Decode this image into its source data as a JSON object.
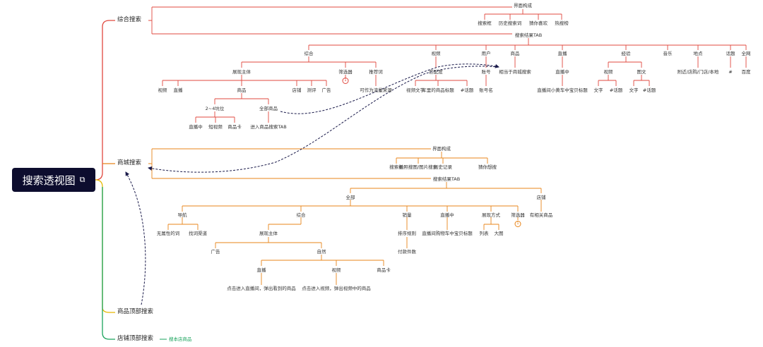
{
  "root": {
    "title": "搜索透视图",
    "icon": "copy-icon"
  },
  "branches": {
    "b1": "综合搜索",
    "b2": "商城搜索",
    "b3": "商品顶部搜索",
    "b4": "店铺顶部搜索"
  },
  "b4_child": "搜本店商品",
  "s1": {
    "ui": "界面构成",
    "ui_items": [
      "搜索框",
      "历史搜索词",
      "猜你喜欢",
      "热搜榜"
    ],
    "tab": "搜索结果TAB",
    "tabs": [
      "综合",
      "视频",
      "用户",
      "商品",
      "直播",
      "经验",
      "音乐",
      "地点",
      "话题",
      "全网"
    ],
    "zh": {
      "main": "展现主体",
      "filter": "筛选器",
      "rec": "推荐词",
      "rec_child": "可作为流量来源",
      "main_items": [
        "视频",
        "直播",
        "商品",
        "店铺",
        "测评",
        "广告"
      ],
      "goods_a": "2~4坑位",
      "goods_b": "全部商品",
      "goods_a_items": [
        "直播中",
        "短视频",
        "商品卡"
      ],
      "goods_b_item": "进入商品搜索TAB"
    },
    "video": {
      "child": "匹配度",
      "items": [
        "视频文字",
        "车里的商品标题",
        "#话题"
      ]
    },
    "user": {
      "child": "账号",
      "item": "账号名"
    },
    "goods": {
      "child": "相当于商城搜索"
    },
    "live": {
      "child": "直播中",
      "item": "直播间小黄车中宝贝标题"
    },
    "exp": {
      "a": "视频",
      "b": "图文",
      "a_items": [
        "文字",
        "#话题"
      ],
      "b_items": [
        "文字",
        "#话题"
      ]
    },
    "place": {
      "child": "附近/店购/门店/本地"
    },
    "topic": {
      "child": "#"
    },
    "web": {
      "child": "百度"
    }
  },
  "s2": {
    "ui": "界面构成",
    "ui_items": [
      "搜索框",
      "拍照搜图/图片搜索",
      "历史记录",
      "猜你想搜"
    ],
    "tab": "搜索结果TAB",
    "all": "全部",
    "shop": "店铺",
    "shop_item": "有相关商品",
    "all_items": [
      "导航",
      "综合",
      "销量",
      "直播中",
      "展现方式",
      "筛选器"
    ],
    "nav_items": [
      "无属性的词",
      "找词渠道"
    ],
    "zh_main": "展现主体",
    "zh_items": [
      "广告",
      "自然"
    ],
    "natural_items": [
      "直播",
      "视频",
      "商品卡"
    ],
    "live_detail": "点击进入直播间，弹出看到的商品",
    "video_detail": "点击进入视频，弹出视频中的商品",
    "sales_child": "排序规则",
    "sales_item": "付款件数",
    "livein_child": "直播间购物车中宝贝标题",
    "display_items": [
      "列表",
      "大图"
    ]
  },
  "colors": {
    "red": "#e0493f",
    "orange": "#e8841a",
    "yellow": "#e6b800",
    "green": "#1aa35c",
    "root_bg": "#0d0d2e",
    "dashed": "#1a1a4a"
  }
}
